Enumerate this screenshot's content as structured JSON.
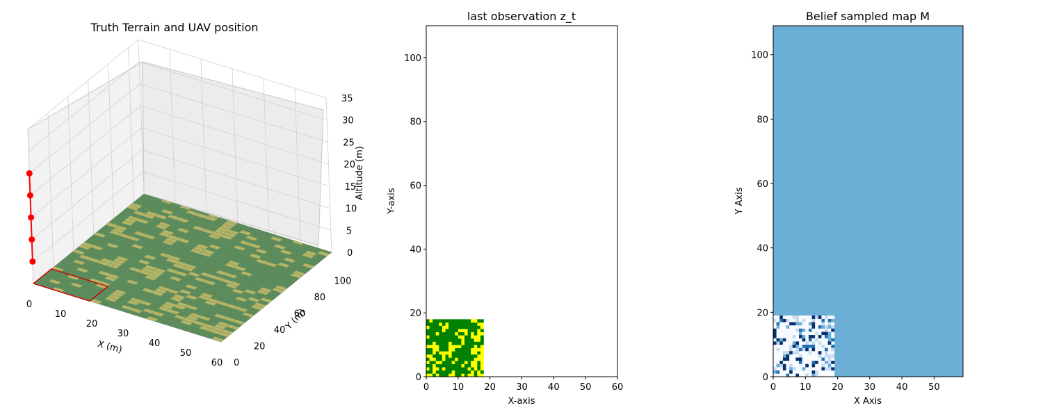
{
  "chart_data": [
    {
      "type": "surface3d",
      "title": "Truth Terrain and UAV position",
      "xlabel": "X (m)",
      "ylabel": "Y (m)",
      "zlabel": "Altitude (m)",
      "xlim": [
        0,
        60
      ],
      "ylim": [
        0,
        110
      ],
      "zlim": [
        0,
        35
      ],
      "xticks": [
        0,
        10,
        20,
        30,
        40,
        50,
        60
      ],
      "yticks": [
        0,
        20,
        40,
        60,
        80,
        100
      ],
      "zticks": [
        0,
        5,
        10,
        15,
        20,
        25,
        30,
        35
      ],
      "grid": true,
      "terrain_colors": [
        "#5c8c5c",
        "#b4b466"
      ],
      "uav_path": {
        "color": "#ff0000",
        "x": [
          0,
          0,
          0,
          0,
          0
        ],
        "y": [
          0,
          0,
          0,
          0,
          0
        ],
        "z": [
          5,
          10,
          15,
          20,
          25
        ]
      },
      "footprint": {
        "color": "#cc0000",
        "x": [
          0,
          18
        ],
        "y": [
          0,
          18
        ]
      }
    },
    {
      "type": "heatmap",
      "title": "last observation z_t",
      "xlabel": "X-axis",
      "ylabel": "Y-axis",
      "xlim": [
        0,
        60
      ],
      "ylim": [
        0,
        110
      ],
      "xticks": [
        0,
        10,
        20,
        30,
        40,
        50,
        60
      ],
      "yticks": [
        0,
        20,
        40,
        60,
        80,
        100
      ],
      "observed_region": {
        "x": [
          0,
          18
        ],
        "y": [
          0,
          18
        ]
      },
      "colors": [
        "#008000",
        "#ffff00"
      ]
    },
    {
      "type": "heatmap",
      "title": "Belief sampled map M",
      "xlabel": "X Axis",
      "ylabel": "Y Axis",
      "xlim": [
        0,
        59
      ],
      "ylim": [
        0,
        109
      ],
      "xticks": [
        0,
        10,
        20,
        30,
        40,
        50
      ],
      "yticks": [
        0,
        20,
        40,
        60,
        80,
        100
      ],
      "background_color": "#6baed6",
      "observed_region": {
        "x": [
          0,
          19
        ],
        "y": [
          0,
          19
        ]
      },
      "colormap": [
        "#f7fbff",
        "#c6dbef",
        "#6baed6",
        "#2171b5",
        "#08306b"
      ]
    }
  ]
}
